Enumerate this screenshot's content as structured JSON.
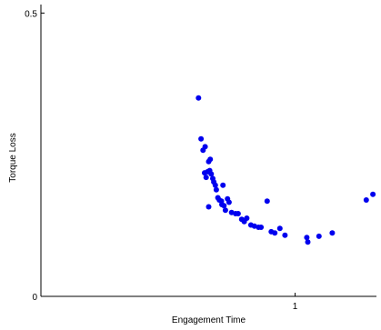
{
  "chart_data": {
    "type": "scatter",
    "title": "",
    "xlabel": "Engagement Time",
    "ylabel": "Torque Loss",
    "xlim": [
      0.0,
      1.32
    ],
    "ylim": [
      0.0,
      0.515
    ],
    "x_ticks": [
      {
        "value": 1,
        "label": "1"
      }
    ],
    "y_ticks": [
      {
        "value": 0,
        "label": "0"
      },
      {
        "value": 0.5,
        "label": "0.5"
      }
    ],
    "grid": false,
    "legend": "none",
    "marker_color": "#0000ee",
    "axis_color": "#000000",
    "series": [
      {
        "points": [
          [
            0.62,
            0.35
          ],
          [
            0.63,
            0.278
          ],
          [
            0.638,
            0.258
          ],
          [
            0.646,
            0.264
          ],
          [
            0.644,
            0.218
          ],
          [
            0.65,
            0.21
          ],
          [
            0.656,
            0.22
          ],
          [
            0.66,
            0.238
          ],
          [
            0.666,
            0.242
          ],
          [
            0.664,
            0.222
          ],
          [
            0.67,
            0.216
          ],
          [
            0.676,
            0.208
          ],
          [
            0.68,
            0.202
          ],
          [
            0.686,
            0.196
          ],
          [
            0.69,
            0.188
          ],
          [
            0.66,
            0.158
          ],
          [
            0.696,
            0.174
          ],
          [
            0.702,
            0.17
          ],
          [
            0.71,
            0.168
          ],
          [
            0.716,
            0.196
          ],
          [
            0.72,
            0.16
          ],
          [
            0.712,
            0.162
          ],
          [
            0.726,
            0.152
          ],
          [
            0.734,
            0.172
          ],
          [
            0.74,
            0.166
          ],
          [
            0.75,
            0.148
          ],
          [
            0.766,
            0.146
          ],
          [
            0.776,
            0.146
          ],
          [
            0.79,
            0.136
          ],
          [
            0.8,
            0.132
          ],
          [
            0.81,
            0.138
          ],
          [
            0.826,
            0.126
          ],
          [
            0.84,
            0.124
          ],
          [
            0.856,
            0.122
          ],
          [
            0.866,
            0.122
          ],
          [
            0.89,
            0.168
          ],
          [
            0.906,
            0.114
          ],
          [
            0.92,
            0.112
          ],
          [
            0.94,
            0.12
          ],
          [
            0.96,
            0.108
          ],
          [
            1.046,
            0.104
          ],
          [
            1.05,
            0.096
          ],
          [
            1.094,
            0.106
          ],
          [
            1.146,
            0.112
          ],
          [
            1.28,
            0.17
          ],
          [
            1.306,
            0.18
          ]
        ]
      }
    ]
  }
}
